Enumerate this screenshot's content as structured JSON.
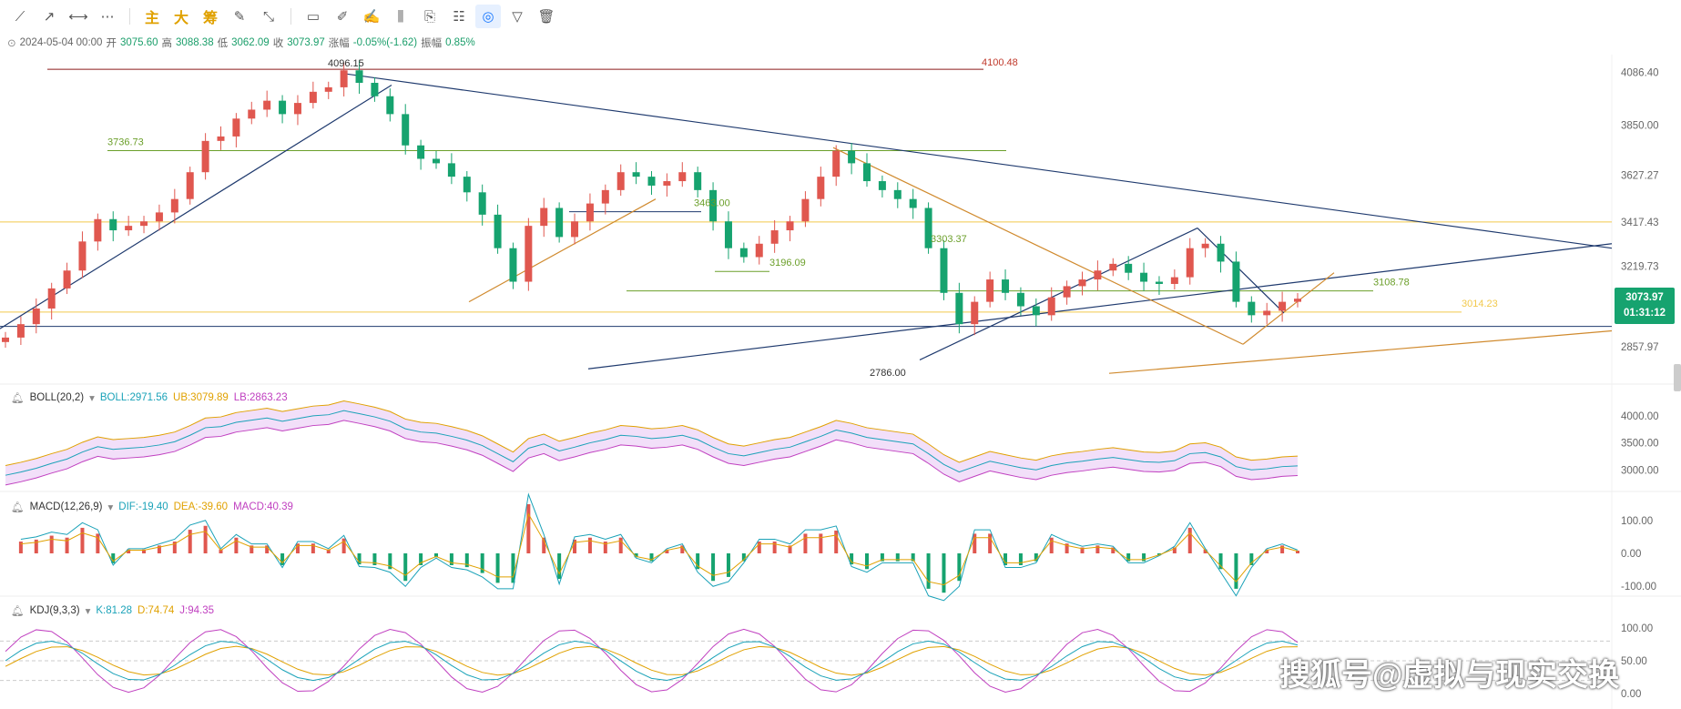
{
  "toolbar": {
    "tools": [
      "trend-line-tool",
      "ray-tool",
      "horizontal-line-tool",
      "more-tool"
    ],
    "cn_buttons": [
      "主",
      "大",
      "筹"
    ],
    "draw_tools": [
      "edit-tool",
      "measure-tool",
      "rect-tool",
      "pen-tool",
      "brush-tool",
      "candle-tool",
      "copy-tool",
      "note-tool",
      "magnet-tool",
      "filter-tool",
      "trash-tool"
    ]
  },
  "ohlc": {
    "date": "2024-05-04 00:00",
    "open_label": "开",
    "open": "3075.60",
    "high_label": "高",
    "high": "3088.38",
    "low_label": "低",
    "low": "3062.09",
    "close_label": "收",
    "close": "3073.97",
    "change_label": "涨幅",
    "change": "-0.05%(-1.62)",
    "amp_label": "振幅",
    "amp": "0.85%"
  },
  "price_tag": {
    "price": "3073.97",
    "countdown": "01:31:12"
  },
  "indicators": {
    "boll": {
      "name": "BOLL(20,2)",
      "boll": "BOLL:2971.56",
      "ub": "UB:3079.89",
      "lb": "LB:2863.23"
    },
    "macd": {
      "name": "MACD(12,26,9)",
      "dif": "DIF:-19.40",
      "dea": "DEA:-39.60",
      "macd": "MACD:40.39"
    },
    "kdj": {
      "name": "KDJ(9,3,3)",
      "k": "K:81.28",
      "d": "D:74.74",
      "j": "J:94.35"
    }
  },
  "watermark": "搜狐号@虚拟与现实交换",
  "colors": {
    "up": "#e0574f",
    "down": "#16a36f",
    "tag": "#16a36f",
    "yellow_line": "#f2c94c",
    "navy_line": "#1f3a6e",
    "orange_line": "#d08a2e",
    "green_line": "#6b9f2a",
    "boll_fill": "#e9c9f5"
  },
  "chart_data": {
    "type": "candlestick",
    "main": {
      "y_ticks": [
        "4086.40",
        "3850.00",
        "3627.27",
        "3417.43",
        "3219.73",
        "2857.97"
      ],
      "annotations": [
        "4096.15",
        "4100.48",
        "3736.73",
        "3463.00",
        "3196.09",
        "3303.37",
        "3108.78",
        "3014.23",
        "2786.00"
      ],
      "close_series": [
        2900,
        2960,
        3030,
        3120,
        3200,
        3330,
        3430,
        3380,
        3400,
        3420,
        3460,
        3520,
        3640,
        3780,
        3800,
        3880,
        3920,
        3960,
        3900,
        3950,
        4000,
        4020,
        4096,
        4040,
        3980,
        3900,
        3760,
        3700,
        3680,
        3620,
        3550,
        3450,
        3300,
        3150,
        3400,
        3480,
        3350,
        3420,
        3500,
        3560,
        3640,
        3620,
        3580,
        3600,
        3640,
        3560,
        3420,
        3300,
        3260,
        3320,
        3380,
        3420,
        3520,
        3620,
        3736,
        3680,
        3600,
        3560,
        3520,
        3480,
        3300,
        3100,
        2960,
        3060,
        3160,
        3100,
        3040,
        3000,
        3080,
        3130,
        3160,
        3200,
        3230,
        3190,
        3150,
        3140,
        3170,
        3300,
        3320,
        3240,
        3060,
        3000,
        3020,
        3060,
        3074
      ]
    },
    "boll": {
      "y_ticks": [
        "4000.00",
        "3500.00",
        "3000.00"
      ],
      "boll": 2971.56,
      "ub": 3079.89,
      "lb": 2863.23
    },
    "macd": {
      "y_ticks": [
        "100.00",
        "0.00",
        "-100.00"
      ],
      "dif": -19.4,
      "dea": -39.6,
      "macd": 40.39
    },
    "kdj": {
      "y_ticks": [
        "100.00",
        "50.00",
        "0.00"
      ],
      "k": 81.28,
      "d": 74.74,
      "j": 94.35
    }
  }
}
